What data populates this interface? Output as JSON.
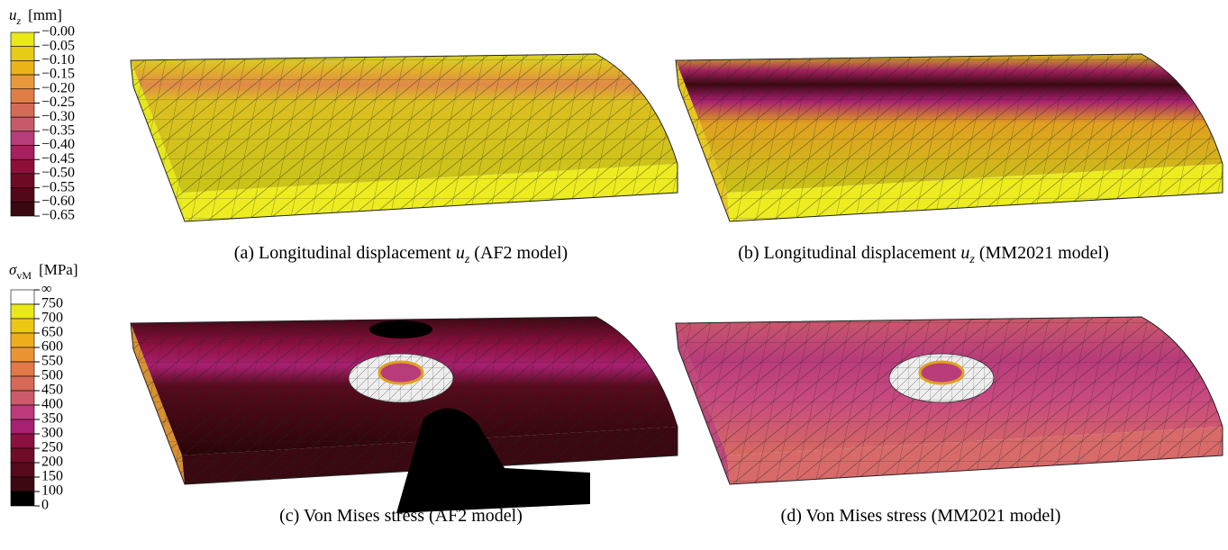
{
  "legends": [
    {
      "symbol": "u",
      "subscript": "z",
      "unit": "[mm]",
      "ticks": [
        "−0.00",
        "−0.05",
        "−0.10",
        "−0.15",
        "−0.20",
        "−0.25",
        "−0.30",
        "−0.35",
        "−0.40",
        "−0.45",
        "−0.50",
        "−0.55",
        "−0.60",
        "−0.65"
      ],
      "colors": [
        "#e8e81a",
        "#e6cc14",
        "#ecb21a",
        "#e89a3a",
        "#e07e48",
        "#d66a56",
        "#c65a6a",
        "#b83c7a",
        "#a82060",
        "#8e1038",
        "#6e0a24",
        "#520818",
        "#3a0810"
      ]
    },
    {
      "symbol": "σ",
      "subscript": "vM",
      "unit": "[MPa]",
      "ticks": [
        "∞",
        "750",
        "700",
        "650",
        "600",
        "550",
        "500",
        "450",
        "400",
        "350",
        "300",
        "250",
        "200",
        "150",
        "100",
        "0"
      ],
      "colors": [
        "#ffffff",
        "#e8e81a",
        "#ecc814",
        "#eeae1c",
        "#ea9432",
        "#e27a48",
        "#d86858",
        "#cc5a6a",
        "#bc3a7c",
        "#a82070",
        "#8c1040",
        "#700c28",
        "#560a1c",
        "#3e0812",
        "#000000"
      ]
    }
  ],
  "captions": [
    {
      "prefix": "(a) Longitudinal displacement ",
      "symbol": "u",
      "subscript": "z",
      "suffix": " (AF2 model)"
    },
    {
      "prefix": "(b) Longitudinal displacement ",
      "symbol": "u",
      "subscript": "z",
      "suffix": " (MM2021 model)"
    },
    {
      "text": "(c) Von Mises stress (AF2 model)"
    },
    {
      "text": "(d) Von Mises stress (MM2021 model)"
    }
  ]
}
